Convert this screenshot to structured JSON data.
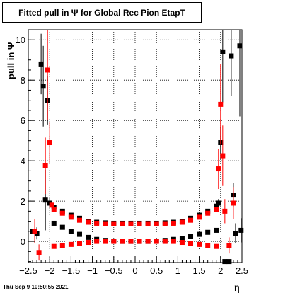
{
  "title": "Fitted pull in  Ψ  for Global Rec Pion EtapT",
  "datestamp": "Thu Sep  9 10:50:55 2021",
  "chart_data": {
    "type": "scatter",
    "title": "Fitted pull in  Ψ  for Global Rec Pion EtapT",
    "xlabel": "η",
    "ylabel": "pull in  Ψ",
    "xlim": [
      -2.5,
      2.5
    ],
    "ylim": [
      -1.05,
      10.5
    ],
    "xticks": [
      -2.5,
      -2,
      -1.5,
      -1,
      -0.5,
      0,
      0.5,
      1,
      1.5,
      2,
      2.5
    ],
    "xtick_labels": [
      "−2.5",
      "−2",
      "−1.5",
      "−1",
      "−0.5",
      "0",
      "0.5",
      "1",
      "1.5",
      "2",
      "2.5"
    ],
    "yticks": [
      0,
      2,
      4,
      6,
      8,
      10
    ],
    "ytick_labels": [
      "0",
      "2",
      "4",
      "6",
      "8",
      "10"
    ],
    "grid": true,
    "series": [
      {
        "color": "#000000",
        "points": [
          [
            -2.4,
            0.5,
            0.05
          ],
          [
            -2.3,
            0.4,
            0.3
          ],
          [
            -2.2,
            8.8,
            1.5
          ],
          [
            -2.15,
            7.7,
            2.0
          ],
          [
            -2.1,
            2.05,
            1.5
          ],
          [
            -2.05,
            7.0,
            1.2
          ],
          [
            -2.0,
            1.9,
            0.25
          ],
          [
            -1.9,
            1.7,
            0.1
          ],
          [
            -1.7,
            1.5,
            0.06
          ],
          [
            -1.5,
            1.3,
            0.05
          ],
          [
            -1.3,
            1.15,
            0.04
          ],
          [
            -1.1,
            1.0,
            0.04
          ],
          [
            -0.9,
            0.95,
            0.04
          ],
          [
            -0.7,
            0.92,
            0.04
          ],
          [
            -0.5,
            0.9,
            0.04
          ],
          [
            -0.3,
            0.9,
            0.04
          ],
          [
            -0.1,
            0.9,
            0.04
          ],
          [
            0.1,
            0.9,
            0.04
          ],
          [
            0.3,
            0.9,
            0.04
          ],
          [
            0.5,
            0.9,
            0.04
          ],
          [
            0.7,
            0.92,
            0.04
          ],
          [
            0.9,
            0.95,
            0.04
          ],
          [
            1.1,
            1.0,
            0.04
          ],
          [
            1.3,
            1.15,
            0.05
          ],
          [
            1.5,
            1.3,
            0.05
          ],
          [
            1.7,
            1.5,
            0.06
          ],
          [
            1.9,
            1.75,
            0.1
          ],
          [
            -1.9,
            0.9,
            0.06
          ],
          [
            -1.7,
            0.7,
            0.05
          ],
          [
            -1.5,
            0.5,
            0.04
          ],
          [
            -1.3,
            0.35,
            0.04
          ],
          [
            -1.1,
            0.2,
            0.03
          ],
          [
            -0.9,
            0.1,
            0.03
          ],
          [
            -0.7,
            0.05,
            0.03
          ],
          [
            -0.5,
            0.02,
            0.03
          ],
          [
            -0.3,
            0.0,
            0.03
          ],
          [
            -0.1,
            0.0,
            0.03
          ],
          [
            0.1,
            0.0,
            0.03
          ],
          [
            0.3,
            0.0,
            0.03
          ],
          [
            0.5,
            0.02,
            0.03
          ],
          [
            0.7,
            0.05,
            0.03
          ],
          [
            0.9,
            0.1,
            0.03
          ],
          [
            1.1,
            0.15,
            0.03
          ],
          [
            1.3,
            0.25,
            0.04
          ],
          [
            1.5,
            0.35,
            0.04
          ],
          [
            1.7,
            0.45,
            0.05
          ],
          [
            1.9,
            0.55,
            0.06
          ],
          [
            1.95,
            1.9,
            0.2
          ],
          [
            2.0,
            4.9,
            0.8
          ],
          [
            2.05,
            9.4,
            2.5
          ],
          [
            2.1,
            -1.0,
            0.1
          ],
          [
            2.2,
            -1.0,
            0.1
          ],
          [
            2.25,
            9.2,
            2.0
          ],
          [
            2.3,
            2.3,
            0.6
          ],
          [
            2.35,
            0.4,
            0.5
          ],
          [
            2.45,
            9.7,
            3.5
          ],
          [
            2.48,
            0.55,
            0.6
          ]
        ]
      },
      {
        "color": "#ff0000",
        "points": [
          [
            -2.35,
            0.5,
            0.6
          ],
          [
            -2.25,
            -0.55,
            0.4
          ],
          [
            -2.1,
            3.75,
            1.4
          ],
          [
            -2.05,
            8.5,
            2.5
          ],
          [
            -2.0,
            4.9,
            1.0
          ],
          [
            -1.95,
            1.8,
            0.15
          ],
          [
            -1.9,
            1.6,
            0.08
          ],
          [
            -1.7,
            1.4,
            0.06
          ],
          [
            -1.5,
            1.2,
            0.05
          ],
          [
            -1.3,
            1.05,
            0.05
          ],
          [
            -1.1,
            0.95,
            0.04
          ],
          [
            -0.9,
            0.9,
            0.04
          ],
          [
            -0.7,
            0.88,
            0.04
          ],
          [
            -0.5,
            0.88,
            0.04
          ],
          [
            -0.3,
            0.88,
            0.04
          ],
          [
            -0.1,
            0.88,
            0.04
          ],
          [
            0.1,
            0.88,
            0.04
          ],
          [
            0.3,
            0.88,
            0.04
          ],
          [
            0.5,
            0.88,
            0.04
          ],
          [
            0.7,
            0.88,
            0.04
          ],
          [
            0.9,
            0.9,
            0.04
          ],
          [
            1.1,
            0.95,
            0.04
          ],
          [
            1.3,
            1.05,
            0.05
          ],
          [
            1.5,
            1.2,
            0.05
          ],
          [
            1.7,
            1.4,
            0.06
          ],
          [
            1.9,
            1.6,
            0.08
          ],
          [
            -1.9,
            -0.25,
            0.06
          ],
          [
            -1.7,
            -0.2,
            0.05
          ],
          [
            -1.5,
            -0.15,
            0.04
          ],
          [
            -1.3,
            -0.1,
            0.04
          ],
          [
            -1.1,
            -0.05,
            0.03
          ],
          [
            -0.9,
            0.0,
            0.03
          ],
          [
            -0.7,
            0.0,
            0.03
          ],
          [
            -0.5,
            0.0,
            0.03
          ],
          [
            -0.3,
            0.0,
            0.03
          ],
          [
            -0.1,
            0.0,
            0.03
          ],
          [
            0.1,
            0.0,
            0.03
          ],
          [
            0.3,
            0.0,
            0.03
          ],
          [
            0.5,
            0.0,
            0.03
          ],
          [
            0.7,
            0.0,
            0.03
          ],
          [
            0.9,
            0.0,
            0.03
          ],
          [
            1.1,
            -0.05,
            0.03
          ],
          [
            1.3,
            -0.1,
            0.04
          ],
          [
            1.5,
            -0.15,
            0.04
          ],
          [
            1.7,
            -0.2,
            0.05
          ],
          [
            1.9,
            -0.25,
            0.06
          ],
          [
            1.95,
            3.6,
            1.0
          ],
          [
            2.0,
            6.8,
            2.0
          ],
          [
            2.05,
            4.25,
            1.5
          ],
          [
            2.1,
            1.5,
            0.6
          ],
          [
            2.2,
            -0.2,
            0.4
          ],
          [
            2.3,
            1.9,
            0.8
          ]
        ]
      }
    ]
  }
}
